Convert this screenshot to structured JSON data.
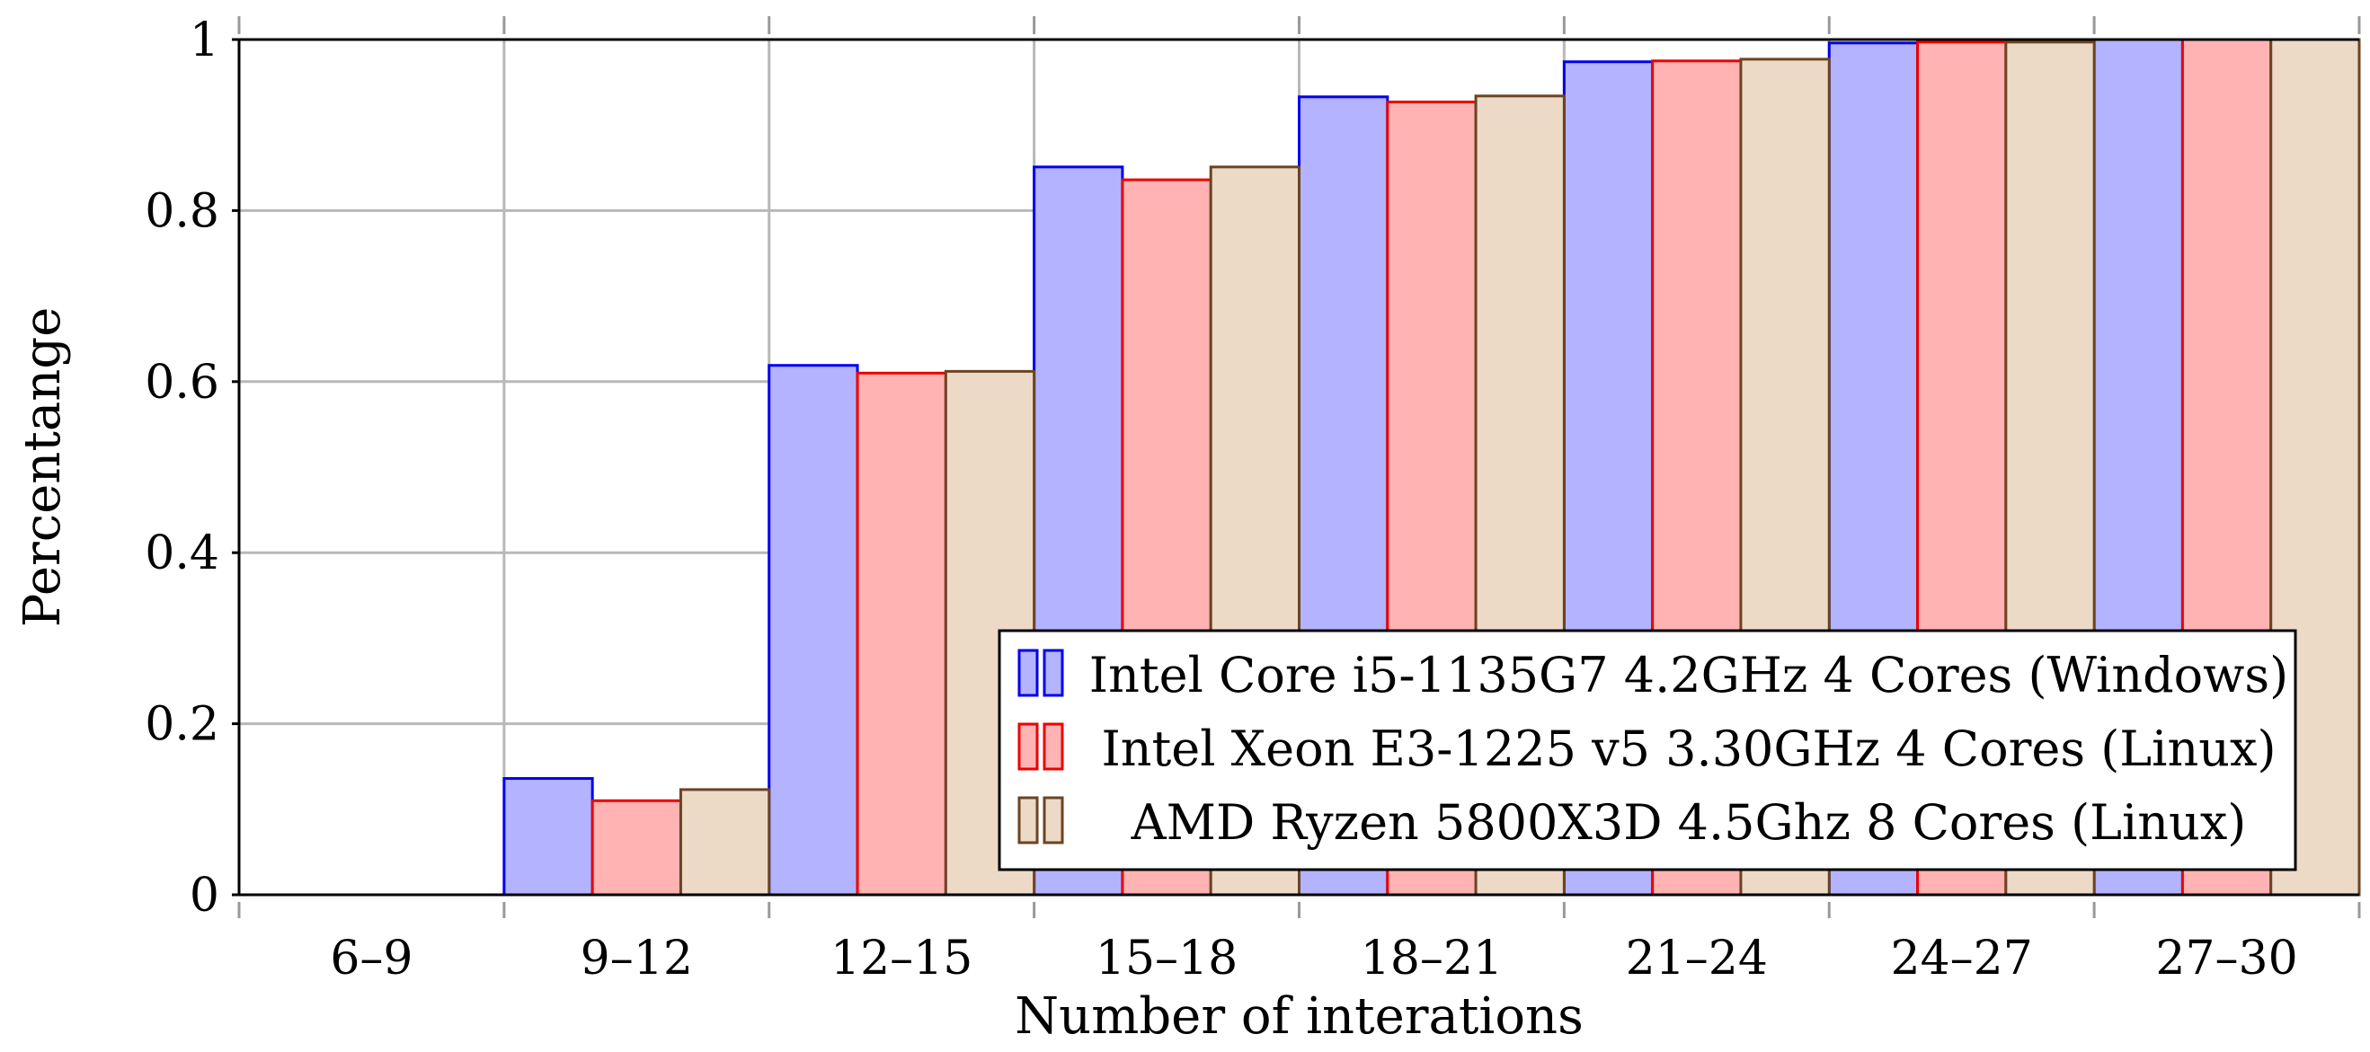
{
  "chart_data": {
    "type": "bar",
    "title": "",
    "xlabel": "Number of interations",
    "ylabel": "Percentange",
    "ylim": [
      0,
      1
    ],
    "yticks": [
      0,
      0.2,
      0.4,
      0.6,
      0.8,
      1
    ],
    "ytick_labels": [
      "0",
      "0.2",
      "0.4",
      "0.6",
      "0.8",
      "1"
    ],
    "grid": true,
    "legend_position": "bottom-right",
    "categories": [
      "6–9",
      "9–12",
      "12–15",
      "15–18",
      "18–21",
      "21–24",
      "24–27",
      "27–30"
    ],
    "series": [
      {
        "name": "Intel Core i5-1135G7 4.2GHz 4 Cores (Windows)",
        "stroke": "#0000ee",
        "fill": "#b3b3ff",
        "values": [
          0,
          0.136,
          0.619,
          0.851,
          0.933,
          0.974,
          0.996,
          1.0
        ]
      },
      {
        "name": "Intel Xeon E3-1225 v5 3.30GHz 4 Cores (Linux)",
        "stroke": "#ee0000",
        "fill": "#ffb3b3",
        "values": [
          0,
          0.11,
          0.61,
          0.836,
          0.927,
          0.975,
          0.997,
          1.0
        ]
      },
      {
        "name": "AMD Ryzen 5800X3D 4.5Ghz 8 Cores (Linux)",
        "stroke": "#6b4423",
        "fill": "#ecdac7",
        "values": [
          0,
          0.123,
          0.612,
          0.851,
          0.934,
          0.977,
          0.997,
          1.0
        ]
      }
    ]
  }
}
